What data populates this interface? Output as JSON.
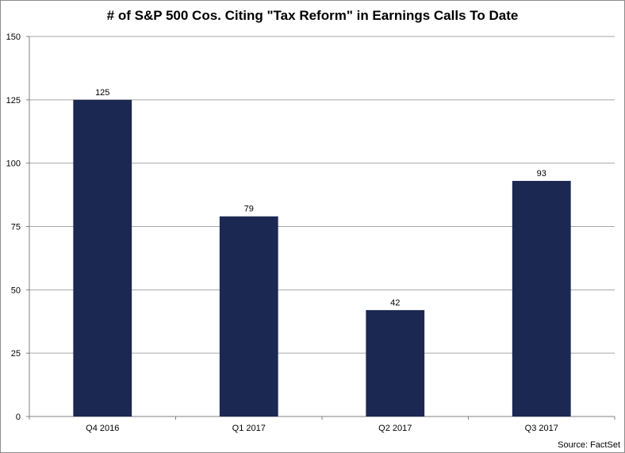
{
  "chart_data": {
    "type": "bar",
    "title": "# of S&P 500 Cos. Citing \"Tax Reform\" in Earnings Calls To Date",
    "categories": [
      "Q4 2016",
      "Q1 2017",
      "Q2 2017",
      "Q3 2017"
    ],
    "values": [
      125,
      79,
      42,
      93
    ],
    "data_labels": [
      "125",
      "79",
      "42",
      "93"
    ],
    "xlabel": "",
    "ylabel": "",
    "ylim": [
      0,
      150
    ],
    "yticks": [
      "0",
      "25",
      "50",
      "75",
      "100",
      "125",
      "150"
    ],
    "grid": true,
    "legend": "none",
    "bar_color": "#1b2851",
    "source": "Source: FactSet"
  }
}
